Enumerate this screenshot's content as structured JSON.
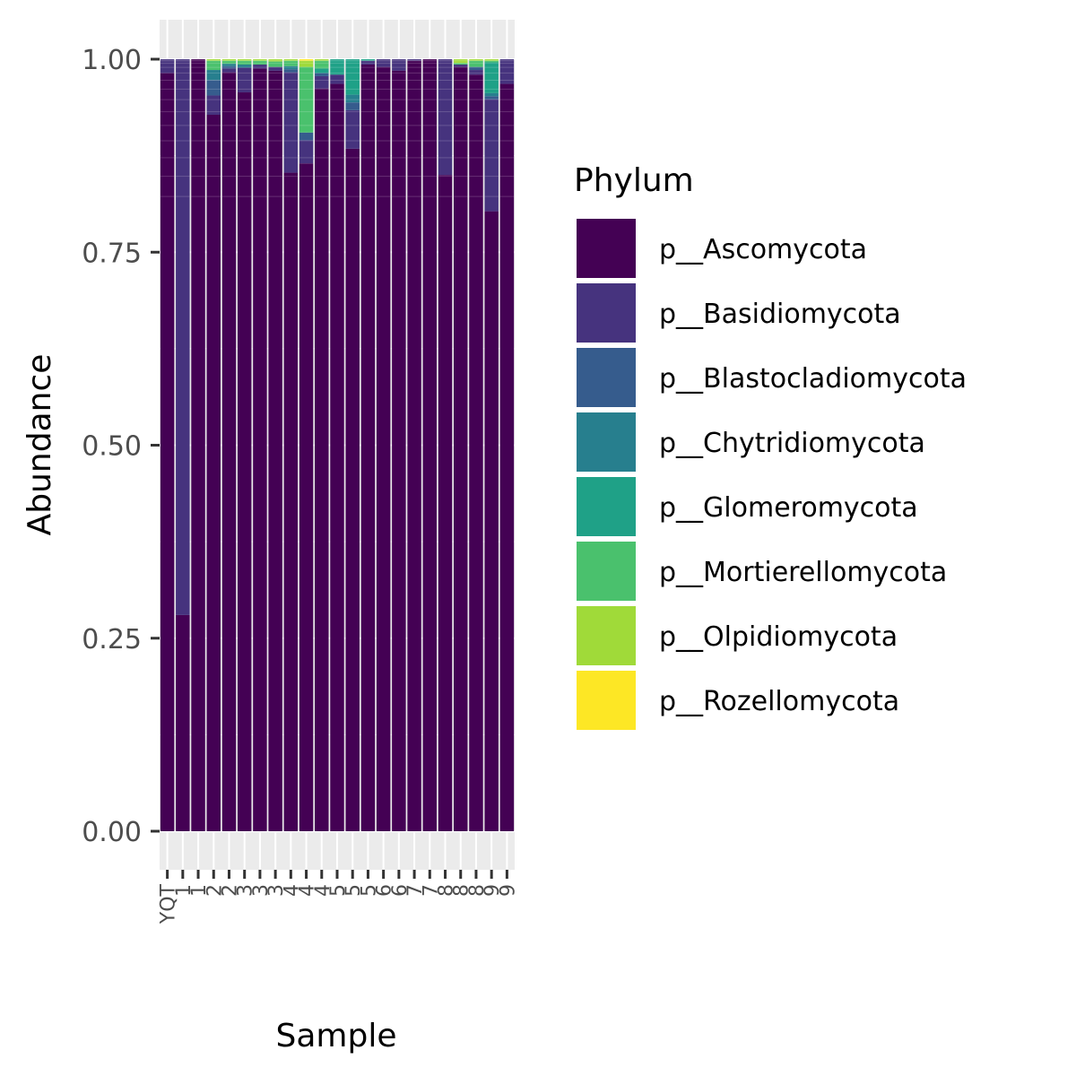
{
  "chart_data": {
    "type": "bar",
    "stacked": true,
    "xlabel": "Sample",
    "ylabel": "Abundance",
    "ylim": [
      0,
      1
    ],
    "y_ticks": [
      "0.00",
      "0.25",
      "0.50",
      "0.75",
      "1.00"
    ],
    "y_tick_values": [
      0,
      0.25,
      0.5,
      0.75,
      1.0
    ],
    "grid": true,
    "legend_title": "Phylum",
    "legend_position": "right",
    "categories": [
      "S1",
      "S2",
      "S3",
      "S4",
      "S5",
      "S6",
      "S7",
      "S8",
      "S9",
      "S10",
      "S11",
      "S12",
      "S13",
      "S14",
      "S15",
      "S16",
      "S17",
      "S18",
      "S19",
      "S20",
      "S21",
      "S22",
      "S23"
    ],
    "category_labels": [
      "YQT",
      "1",
      "1",
      "2",
      "2",
      "3",
      "3",
      "3",
      "4",
      "4",
      "4",
      "5",
      "5",
      "5",
      "6",
      "6",
      "7",
      "7",
      "8",
      "8",
      "8",
      "9",
      "9"
    ],
    "series": [
      {
        "name": "p__Ascomycota",
        "color": "#440154",
        "values": [
          0.982,
          0.28,
          1.0,
          0.928,
          0.983,
          0.957,
          0.988,
          0.985,
          0.853,
          0.865,
          0.962,
          0.968,
          0.884,
          0.993,
          0.99,
          0.985,
          0.998,
          1.0,
          0.85,
          0.99,
          0.98,
          0.803,
          0.968
        ]
      },
      {
        "name": "p__Basidiomycota",
        "color": "#46337E",
        "values": [
          0.018,
          0.72,
          0.0,
          0.025,
          0.005,
          0.032,
          0.005,
          0.005,
          0.13,
          0.03,
          0.016,
          0.012,
          0.05,
          0.005,
          0.01,
          0.015,
          0.002,
          0.0,
          0.15,
          0.003,
          0.006,
          0.145,
          0.032
        ]
      },
      {
        "name": "p__Blastocladiomycota",
        "color": "#365C8D",
        "values": [
          0,
          0,
          0,
          0.02,
          0.003,
          0,
          0,
          0,
          0.004,
          0.01,
          0.004,
          0,
          0.01,
          0,
          0,
          0,
          0,
          0,
          0,
          0,
          0.004,
          0.004,
          0
        ]
      },
      {
        "name": "p__Chytridiomycota",
        "color": "#277F8E",
        "values": [
          0,
          0,
          0,
          0.013,
          0.003,
          0.004,
          0,
          0,
          0.004,
          0,
          0,
          0,
          0.01,
          0,
          0,
          0,
          0,
          0,
          0,
          0,
          0,
          0.004,
          0
        ]
      },
      {
        "name": "p__Glomeromycota",
        "color": "#1FA187",
        "values": [
          0,
          0,
          0,
          0,
          0,
          0,
          0,
          0,
          0,
          0,
          0.006,
          0.02,
          0.046,
          0.002,
          0,
          0,
          0,
          0,
          0,
          0,
          0,
          0.04,
          0
        ]
      },
      {
        "name": "p__Mortierellomycota",
        "color": "#4AC16D",
        "values": [
          0,
          0,
          0,
          0.012,
          0.004,
          0.005,
          0.005,
          0.007,
          0.007,
          0.085,
          0.01,
          0,
          0,
          0,
          0,
          0,
          0,
          0,
          0,
          0.002,
          0.008,
          0.002,
          0
        ]
      },
      {
        "name": "p__Olpidiomycota",
        "color": "#A0DA39",
        "values": [
          0,
          0,
          0,
          0.002,
          0.002,
          0.002,
          0.002,
          0.003,
          0.002,
          0.008,
          0.002,
          0,
          0,
          0,
          0,
          0,
          0,
          0,
          0,
          0.005,
          0.002,
          0.002,
          0
        ]
      },
      {
        "name": "p__Rozellomycota",
        "color": "#FDE725",
        "values": [
          0,
          0,
          0,
          0,
          0,
          0,
          0,
          0,
          0,
          0.002,
          0,
          0,
          0,
          0,
          0,
          0,
          0,
          0,
          0,
          0,
          0,
          0,
          0
        ]
      }
    ]
  }
}
